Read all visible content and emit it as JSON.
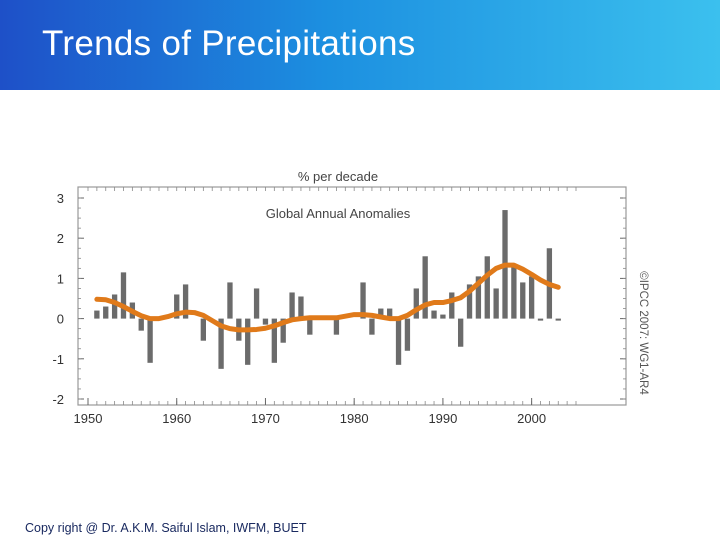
{
  "slide": {
    "title": "Trends of Precipitations",
    "footer": "Copy right @ Dr. A.K.M. Saiful Islam, IWFM, BUET",
    "accent_colors": {
      "title_bar_left": "#1e50c8",
      "title_bar_right": "#3bc0ee"
    }
  },
  "chart_data": {
    "type": "bar",
    "title": "Global Annual Anomalies",
    "ylabel": "% per decade",
    "credit": "©IPCC 2007: WG1-AR4",
    "xlim": [
      1950,
      2005
    ],
    "ylim": [
      -2,
      3
    ],
    "x_ticks": [
      1950,
      1960,
      1970,
      1980,
      1990,
      2000
    ],
    "y_ticks": [
      3,
      2,
      1,
      0,
      -1,
      -2
    ],
    "grid": false,
    "series": [
      {
        "kind": "bar",
        "color": "#6b6b6b",
        "x": [
          1951,
          1952,
          1953,
          1954,
          1955,
          1956,
          1957,
          1958,
          1959,
          1960,
          1961,
          1962,
          1963,
          1964,
          1965,
          1966,
          1967,
          1968,
          1969,
          1970,
          1971,
          1972,
          1973,
          1974,
          1975,
          1976,
          1977,
          1978,
          1979,
          1980,
          1981,
          1982,
          1983,
          1984,
          1985,
          1986,
          1987,
          1988,
          1989,
          1990,
          1991,
          1992,
          1993,
          1994,
          1995,
          1996,
          1997,
          1998,
          1999,
          2000,
          2001,
          2002,
          2003
        ],
        "values": [
          0.2,
          0.3,
          0.6,
          1.15,
          0.4,
          -0.3,
          -1.1,
          0.0,
          0.0,
          0.6,
          0.85,
          0.0,
          -0.55,
          0.0,
          -1.25,
          0.9,
          -0.55,
          -1.15,
          0.75,
          -0.15,
          -1.1,
          -0.6,
          0.65,
          0.55,
          -0.4,
          0.0,
          0.0,
          -0.4,
          0.0,
          0.0,
          0.9,
          -0.4,
          0.25,
          0.25,
          -1.15,
          -0.8,
          0.75,
          1.55,
          0.2,
          0.1,
          0.65,
          -0.7,
          0.85,
          1.05,
          1.55,
          0.75,
          2.7,
          1.35,
          0.9,
          1.05,
          -0.05,
          1.75,
          -0.05
        ]
      },
      {
        "kind": "line",
        "name": "smoothed",
        "color": "#e07a1a",
        "x": [
          1951,
          1952,
          1953,
          1954,
          1955,
          1956,
          1957,
          1958,
          1959,
          1960,
          1961,
          1962,
          1963,
          1964,
          1965,
          1966,
          1967,
          1968,
          1969,
          1970,
          1971,
          1972,
          1973,
          1974,
          1975,
          1976,
          1977,
          1978,
          1979,
          1980,
          1981,
          1982,
          1983,
          1984,
          1985,
          1986,
          1987,
          1988,
          1989,
          1990,
          1991,
          1992,
          1993,
          1994,
          1995,
          1996,
          1997,
          1998,
          1999,
          2000,
          2001,
          2002,
          2003
        ],
        "values": [
          0.48,
          0.47,
          0.4,
          0.3,
          0.18,
          0.07,
          0.0,
          0.0,
          0.05,
          0.12,
          0.16,
          0.15,
          0.08,
          -0.05,
          -0.18,
          -0.25,
          -0.28,
          -0.28,
          -0.27,
          -0.24,
          -0.18,
          -0.1,
          -0.03,
          0.0,
          0.02,
          0.02,
          0.02,
          0.02,
          0.06,
          0.1,
          0.1,
          0.08,
          0.04,
          0.0,
          0.0,
          0.08,
          0.22,
          0.34,
          0.4,
          0.4,
          0.45,
          0.52,
          0.68,
          0.88,
          1.08,
          1.25,
          1.33,
          1.33,
          1.23,
          1.1,
          0.96,
          0.85,
          0.78
        ]
      }
    ]
  }
}
